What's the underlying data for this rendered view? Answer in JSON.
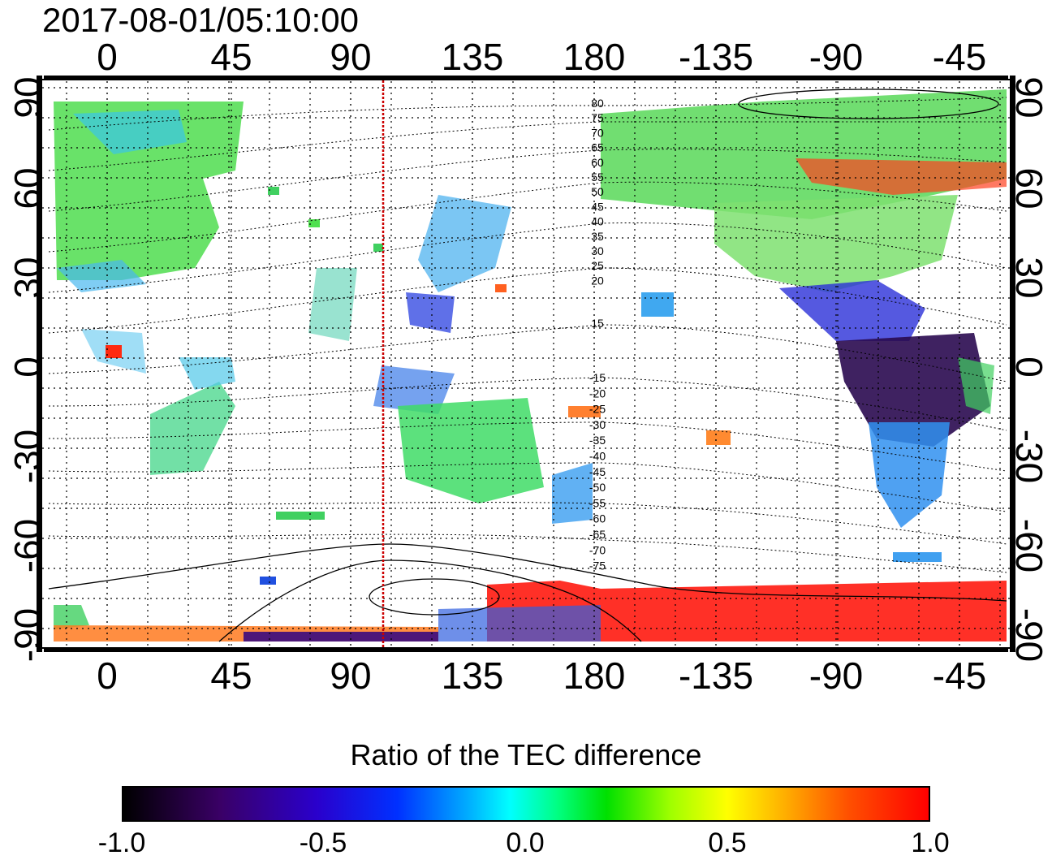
{
  "title": "2017-08-01/05:10:00",
  "map": {
    "lon_ticks": [
      "0",
      "45",
      "90",
      "135",
      "180",
      "-135",
      "-90",
      "-45"
    ],
    "lat_ticks": [
      "90",
      "60",
      "30",
      "0",
      "-30",
      "-60",
      "-90"
    ],
    "contour_labels_north": [
      "80",
      "75",
      "70",
      "65",
      "60",
      "55",
      "50",
      "45",
      "40",
      "35",
      "30",
      "25",
      "20",
      "15"
    ],
    "contour_labels_south": [
      "-15",
      "-20",
      "-25",
      "-30",
      "-35",
      "-40",
      "-45",
      "-50",
      "-55",
      "-60",
      "-65",
      "-70",
      "-75"
    ],
    "terminator_longitude": 102,
    "terminator_color": "#cc0000"
  },
  "colorbar": {
    "title": "Ratio of the TEC difference",
    "ticks": [
      "-1.0",
      "-0.5",
      "0.0",
      "0.5",
      "1.0"
    ],
    "colors": [
      "#000000",
      "#3a0066",
      "#0030ff",
      "#00ffff",
      "#00e000",
      "#ffff00",
      "#ff0000"
    ]
  }
}
